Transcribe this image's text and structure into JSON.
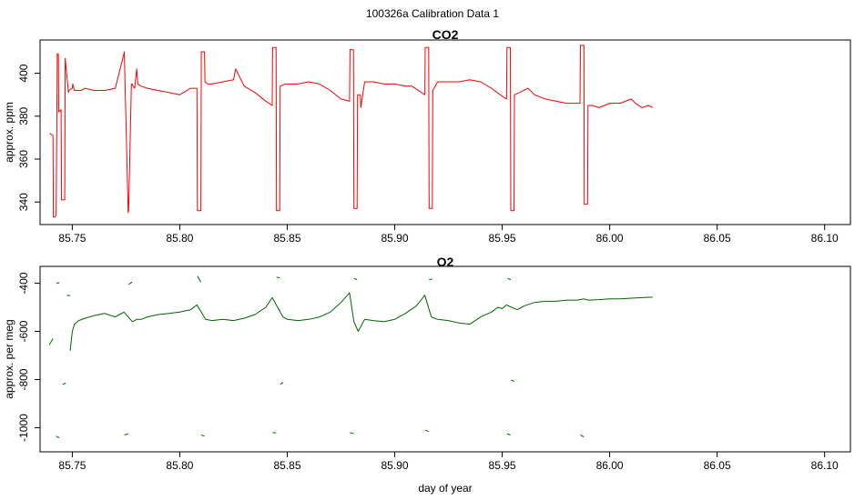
{
  "figure": {
    "title": "100326a   Calibration Data 1",
    "xlabel": "day of year"
  },
  "chart_data": [
    {
      "type": "line",
      "title": "CO2",
      "ylabel": "approx. ppm",
      "xlim": [
        85.735,
        86.112
      ],
      "ylim": [
        329.5,
        415.5
      ],
      "xticks": [
        85.75,
        85.8,
        85.85,
        85.9,
        85.95,
        86.0,
        86.05,
        86.1
      ],
      "xtick_labels": [
        "85.75",
        "85.80",
        "85.85",
        "85.90",
        "85.95",
        "86.00",
        "86.05",
        "86.10"
      ],
      "yticks": [
        340,
        360,
        380,
        400
      ],
      "ytick_labels": [
        "340",
        "360",
        "380",
        "400"
      ],
      "series": [
        {
          "color": "#ff0000",
          "x": [
            85.7395,
            85.741,
            85.7412,
            85.742,
            85.7425,
            85.743,
            85.7435,
            85.7437,
            85.7448,
            85.745,
            85.7465,
            85.7467,
            85.7482,
            85.7484,
            85.75,
            85.7502,
            85.751,
            85.754,
            85.756,
            85.76,
            85.765,
            85.77,
            85.774,
            85.7742,
            85.776,
            85.7762,
            85.7775,
            85.7777,
            85.779,
            85.78,
            85.7805,
            85.782,
            85.785,
            85.79,
            85.795,
            85.8,
            85.805,
            85.808,
            85.8082,
            85.8098,
            85.81,
            85.8115,
            85.8117,
            85.813,
            85.815,
            85.82,
            85.825,
            85.826,
            85.83,
            85.835,
            85.84,
            85.843,
            85.8432,
            85.8448,
            85.845,
            85.8465,
            85.8467,
            85.849,
            85.855,
            85.86,
            85.865,
            85.87,
            85.875,
            85.879,
            85.8792,
            85.8808,
            85.881,
            85.8825,
            85.8827,
            85.884,
            85.8842,
            85.886,
            85.89,
            85.895,
            85.9,
            85.905,
            85.908,
            85.914,
            85.9142,
            85.9158,
            85.916,
            85.9175,
            85.9177,
            85.92,
            85.925,
            85.93,
            85.935,
            85.94,
            85.945,
            85.949,
            85.952,
            85.9522,
            85.9538,
            85.954,
            85.9555,
            85.9557,
            85.958,
            85.962,
            85.965,
            85.97,
            85.975,
            85.98,
            85.985,
            85.9862,
            85.9864,
            85.988,
            85.9882,
            85.9897,
            85.9899,
            85.992,
            85.995,
            86.0,
            86.005,
            86.01,
            86.012,
            86.015,
            86.018,
            86.02
          ],
          "y": [
            372,
            371,
            333,
            333,
            334,
            409,
            409,
            382,
            383,
            341,
            341,
            407,
            391,
            392,
            393,
            395,
            392,
            392,
            393,
            392,
            392,
            393,
            409,
            410,
            335,
            336,
            395,
            395,
            393,
            402,
            395,
            394,
            393,
            392,
            391,
            390,
            393,
            393,
            336,
            336,
            410,
            410,
            396,
            395,
            395,
            396,
            397,
            402,
            394,
            391,
            387,
            385,
            412,
            412,
            336,
            336,
            394,
            395,
            395,
            396,
            395,
            392,
            388,
            387,
            411,
            411,
            337,
            337,
            390,
            390,
            384,
            396,
            396,
            395,
            395,
            394,
            394,
            390,
            412,
            412,
            337,
            337,
            392,
            396,
            396,
            396,
            397,
            396,
            393,
            390,
            388,
            412,
            412,
            336,
            336,
            390,
            391,
            393,
            390,
            388,
            387,
            386,
            386,
            386,
            413,
            413,
            339,
            339,
            385,
            385,
            384,
            386,
            386,
            388,
            386,
            384,
            385,
            384
          ]
        }
      ]
    },
    {
      "type": "line",
      "title": "O2",
      "ylabel": "approx. per meg",
      "xlim": [
        85.735,
        86.112
      ],
      "ylim": [
        -1100,
        -330
      ],
      "xticks": [
        85.75,
        85.8,
        85.85,
        85.9,
        85.95,
        86.0,
        86.05,
        86.1
      ],
      "xtick_labels": [
        "85.75",
        "85.80",
        "85.85",
        "85.90",
        "85.95",
        "86.00",
        "86.05",
        "86.10"
      ],
      "yticks": [
        -1000,
        -800,
        -600,
        -400
      ],
      "ytick_labels": [
        "-1000",
        "-800",
        "-600",
        "-400"
      ],
      "series": [
        {
          "color": "#006400",
          "x": [
            85.749,
            85.75,
            85.751,
            85.753,
            85.756,
            85.76,
            85.765,
            85.77,
            85.774,
            85.778,
            85.78,
            85.782,
            85.785,
            85.79,
            85.795,
            85.8,
            85.805,
            85.808,
            85.812,
            85.815,
            85.82,
            85.825,
            85.83,
            85.835,
            85.84,
            85.843,
            85.848,
            85.85,
            85.855,
            85.86,
            85.865,
            85.87,
            85.875,
            85.879,
            85.881,
            85.883,
            85.886,
            85.89,
            85.895,
            85.9,
            85.905,
            85.91,
            85.914,
            85.917,
            85.92,
            85.925,
            85.93,
            85.935,
            85.94,
            85.945,
            85.948,
            85.95,
            85.952,
            85.957,
            85.96,
            85.965,
            85.97,
            85.975,
            85.98,
            85.985,
            85.988,
            85.99,
            85.995,
            86.0,
            86.005,
            86.01,
            86.015,
            86.02
          ],
          "y": [
            -680,
            -600,
            -570,
            -555,
            -545,
            -535,
            -525,
            -540,
            -520,
            -560,
            -550,
            -550,
            -540,
            -530,
            -525,
            -520,
            -510,
            -490,
            -550,
            -555,
            -550,
            -555,
            -545,
            -530,
            -500,
            -460,
            -540,
            -550,
            -555,
            -550,
            -540,
            -520,
            -480,
            -440,
            -560,
            -600,
            -550,
            -555,
            -560,
            -550,
            -525,
            -495,
            -450,
            -540,
            -550,
            -555,
            -565,
            -570,
            -540,
            -520,
            -500,
            -505,
            -490,
            -510,
            -495,
            -480,
            -475,
            -475,
            -470,
            -470,
            -465,
            -470,
            -468,
            -465,
            -465,
            -462,
            -460,
            -458
          ]
        },
        {
          "color": "#006400",
          "x": [
            85.7393,
            85.741
          ],
          "y": [
            -655,
            -630
          ]
        },
        {
          "color": "#006400",
          "x": [
            85.7425,
            85.744
          ],
          "y": [
            -1035,
            -1042
          ]
        },
        {
          "color": "#006400",
          "x": [
            85.7426,
            85.744
          ],
          "y": [
            -400,
            -398
          ]
        },
        {
          "color": "#006400",
          "x": [
            85.7455,
            85.747
          ],
          "y": [
            -820,
            -815
          ]
        },
        {
          "color": "#006400",
          "x": [
            85.7475,
            85.749
          ],
          "y": [
            -450,
            -452
          ]
        },
        {
          "color": "#006400",
          "x": [
            85.7742,
            85.776
          ],
          "y": [
            -1030,
            -1025
          ]
        },
        {
          "color": "#006400",
          "x": [
            85.7762,
            85.7778
          ],
          "y": [
            -405,
            -395
          ]
        },
        {
          "color": "#006400",
          "x": [
            85.8082,
            85.8098
          ],
          "y": [
            -370,
            -395
          ]
        },
        {
          "color": "#006400",
          "x": [
            85.81,
            85.8115
          ],
          "y": [
            -1030,
            -1035
          ]
        },
        {
          "color": "#006400",
          "x": [
            85.8432,
            85.8448
          ],
          "y": [
            -1020,
            -1022
          ]
        },
        {
          "color": "#006400",
          "x": [
            85.845,
            85.8465
          ],
          "y": [
            -375,
            -378
          ]
        },
        {
          "color": "#006400",
          "x": [
            85.8467,
            85.848
          ],
          "y": [
            -820,
            -812
          ]
        },
        {
          "color": "#006400",
          "x": [
            85.8792,
            85.8808
          ],
          "y": [
            -1020,
            -1025
          ]
        },
        {
          "color": "#006400",
          "x": [
            85.881,
            85.8825
          ],
          "y": [
            -380,
            -385
          ]
        },
        {
          "color": "#006400",
          "x": [
            85.9142,
            85.9158
          ],
          "y": [
            -1010,
            -1016
          ]
        },
        {
          "color": "#006400",
          "x": [
            85.916,
            85.9175
          ],
          "y": [
            -385,
            -382
          ]
        },
        {
          "color": "#006400",
          "x": [
            85.9522,
            85.9538
          ],
          "y": [
            -1025,
            -1030
          ]
        },
        {
          "color": "#006400",
          "x": [
            85.9525,
            85.954
          ],
          "y": [
            -380,
            -385
          ]
        },
        {
          "color": "#006400",
          "x": [
            85.9542,
            85.9556
          ],
          "y": [
            -802,
            -808
          ]
        },
        {
          "color": "#006400",
          "x": [
            85.9864,
            85.988
          ],
          "y": [
            -1030,
            -1038
          ]
        }
      ]
    }
  ]
}
